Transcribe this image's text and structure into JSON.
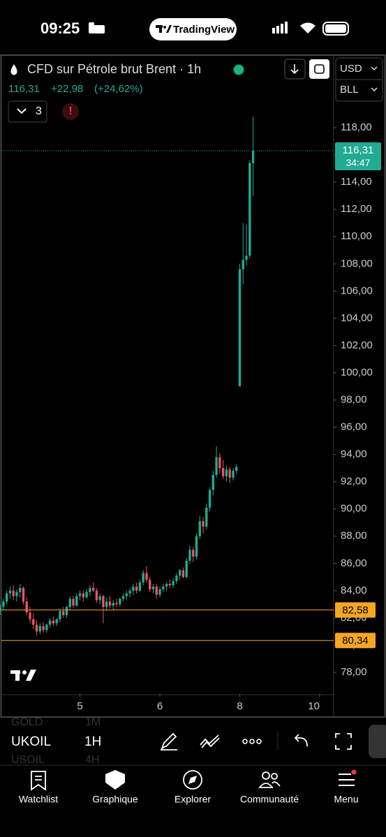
{
  "status_bar": {
    "time": "09:25",
    "app": "TradingView"
  },
  "chart_header": {
    "symbol_title": "CFD sur Pétrole brut Brent · 1h",
    "last": "116,31",
    "change": "+22,98",
    "change_pct": "(+24,62%)",
    "indicators": "3",
    "currency": "USD",
    "unit": "BLL"
  },
  "chart_data": {
    "type": "candlestick",
    "open": [
      82.5,
      82.8,
      83.2,
      83.8,
      84.0,
      83.6,
      83.9,
      84.2,
      83.2,
      82.4,
      81.9,
      81.5,
      81.0,
      81.4,
      81.1,
      81.5,
      81.8,
      81.6,
      81.9,
      82.5,
      82.2,
      82.8,
      83.4,
      82.9,
      83.6,
      83.8,
      83.5,
      83.9,
      84.2,
      84.0,
      83.3,
      83.6,
      82.8,
      83.2,
      82.9,
      83.1,
      83.0,
      83.4,
      83.6,
      83.8,
      84.0,
      84.3,
      84.0,
      84.6,
      85.3,
      84.8,
      84.1,
      84.3,
      83.7,
      84.1,
      84.3,
      84.5,
      84.4,
      84.7,
      85.1,
      85.5,
      85.0,
      86.2,
      87.0,
      86.5,
      88.0,
      89.1,
      88.7,
      90.1,
      91.4,
      92.5,
      93.8,
      93.0,
      92.4,
      92.9,
      92.3,
      92.8,
      99.0,
      107.6,
      108.3,
      108.6,
      115.4
    ],
    "high": [
      83.0,
      83.4,
      84.0,
      84.3,
      84.4,
      84.1,
      84.5,
      84.3,
      83.5,
      82.8,
      82.3,
      81.8,
      81.6,
      81.7,
      81.6,
      82.0,
      82.1,
      82.0,
      82.7,
      82.8,
      82.9,
      83.6,
      83.6,
      83.8,
      84.0,
      84.0,
      84.1,
      84.4,
      84.6,
      84.2,
      83.8,
      83.7,
      83.5,
      83.6,
      83.3,
      83.4,
      83.5,
      83.8,
      84.0,
      84.2,
      84.5,
      84.6,
      84.8,
      85.5,
      85.8,
      85.0,
      84.5,
      84.5,
      84.3,
      84.5,
      84.6,
      84.8,
      84.9,
      85.3,
      85.6,
      85.7,
      86.4,
      87.3,
      87.2,
      88.2,
      89.5,
      89.4,
      90.4,
      91.6,
      92.8,
      94.6,
      94.1,
      93.6,
      93.2,
      93.1,
      93.0,
      93.3,
      108.0,
      111.0,
      110.9,
      115.6,
      118.8
    ],
    "low": [
      82.2,
      82.6,
      83.0,
      83.4,
      83.3,
      83.2,
      83.5,
      83.0,
      82.2,
      81.6,
      81.2,
      80.7,
      80.8,
      80.9,
      80.9,
      81.3,
      81.4,
      81.4,
      81.7,
      82.0,
      82.0,
      82.6,
      82.7,
      82.8,
      83.3,
      83.2,
      83.4,
      83.6,
      83.9,
      83.1,
      83.0,
      81.6,
      82.5,
      82.7,
      82.6,
      82.8,
      82.8,
      83.2,
      83.3,
      83.5,
      83.7,
      83.8,
      83.9,
      84.4,
      84.6,
      83.9,
      83.8,
      83.4,
      83.5,
      83.9,
      84.0,
      84.2,
      84.2,
      84.5,
      84.8,
      84.9,
      84.9,
      86.0,
      86.1,
      86.3,
      87.8,
      88.2,
      88.5,
      89.8,
      91.0,
      92.3,
      92.6,
      92.2,
      92.0,
      91.9,
      92.1,
      92.6,
      99.0,
      106.5,
      107.9,
      108.4,
      113.0
    ],
    "close": [
      82.8,
      83.2,
      83.8,
      84.0,
      83.6,
      83.9,
      84.2,
      83.2,
      82.4,
      81.9,
      81.5,
      81.0,
      81.4,
      81.1,
      81.5,
      81.8,
      81.6,
      81.9,
      82.5,
      82.2,
      82.8,
      83.4,
      82.9,
      83.6,
      83.8,
      83.5,
      83.9,
      84.2,
      84.0,
      83.3,
      83.6,
      82.8,
      83.2,
      82.9,
      83.1,
      83.0,
      83.4,
      83.6,
      83.8,
      84.0,
      84.3,
      84.0,
      84.6,
      85.3,
      84.8,
      84.1,
      84.3,
      83.7,
      84.1,
      84.3,
      84.5,
      84.4,
      84.7,
      85.1,
      85.5,
      85.0,
      86.2,
      87.0,
      86.5,
      88.0,
      89.1,
      88.7,
      90.1,
      91.4,
      92.5,
      93.8,
      93.0,
      92.4,
      92.9,
      92.3,
      92.8,
      93.1,
      107.6,
      108.3,
      108.6,
      115.4,
      116.31
    ],
    "up_color": "#22ab94",
    "down_color": "#f0525e",
    "xlim": [
      0.4,
      100.2
    ],
    "xticks": [
      {
        "value": 24,
        "label": "5"
      },
      {
        "value": 48,
        "label": "6"
      },
      {
        "value": 72,
        "label": "8"
      },
      {
        "value": 96,
        "label": "10"
      }
    ],
    "ylim": [
      76.41,
      123.28
    ],
    "yticks": [
      {
        "value": 78,
        "label": "78,00"
      },
      {
        "value": 80,
        "label": "80,00"
      },
      {
        "value": 82,
        "label": "82,00"
      },
      {
        "value": 84,
        "label": "84,00"
      },
      {
        "value": 86,
        "label": "86,00"
      },
      {
        "value": 88,
        "label": "88,00"
      },
      {
        "value": 90,
        "label": "90,00"
      },
      {
        "value": 92,
        "label": "92,00"
      },
      {
        "value": 94,
        "label": "94,00"
      },
      {
        "value": 96,
        "label": "96,00"
      },
      {
        "value": 98,
        "label": "98,00"
      },
      {
        "value": 100,
        "label": "100,00"
      },
      {
        "value": 102,
        "label": "102,00"
      },
      {
        "value": 104,
        "label": "104,00"
      },
      {
        "value": 106,
        "label": "106,00"
      },
      {
        "value": 108,
        "label": "108,00"
      },
      {
        "value": 110,
        "label": "110,00"
      },
      {
        "value": 112,
        "label": "112,00"
      },
      {
        "value": 114,
        "label": "114,00"
      },
      {
        "value": 116,
        "label": "116,00"
      },
      {
        "value": 118,
        "label": "118,00"
      }
    ],
    "price_lines": [
      {
        "value": 82.58,
        "label": "82,58",
        "color": "#f5a623"
      },
      {
        "value": 80.34,
        "label": "80,34",
        "color": "#f5a623"
      }
    ],
    "last_price": {
      "value": 116.31,
      "label": "116,31",
      "countdown": "34:47"
    }
  },
  "toolbar": {
    "symbols": [
      {
        "name": "GOLD",
        "interval": "1M"
      },
      {
        "name": "UKOIL",
        "interval": "1H"
      },
      {
        "name": "USOIL",
        "interval": "4H"
      }
    ]
  },
  "tab_bar": {
    "tabs": [
      "Watchlist",
      "Graphique",
      "Explorer",
      "Communauté",
      "Menu"
    ]
  }
}
